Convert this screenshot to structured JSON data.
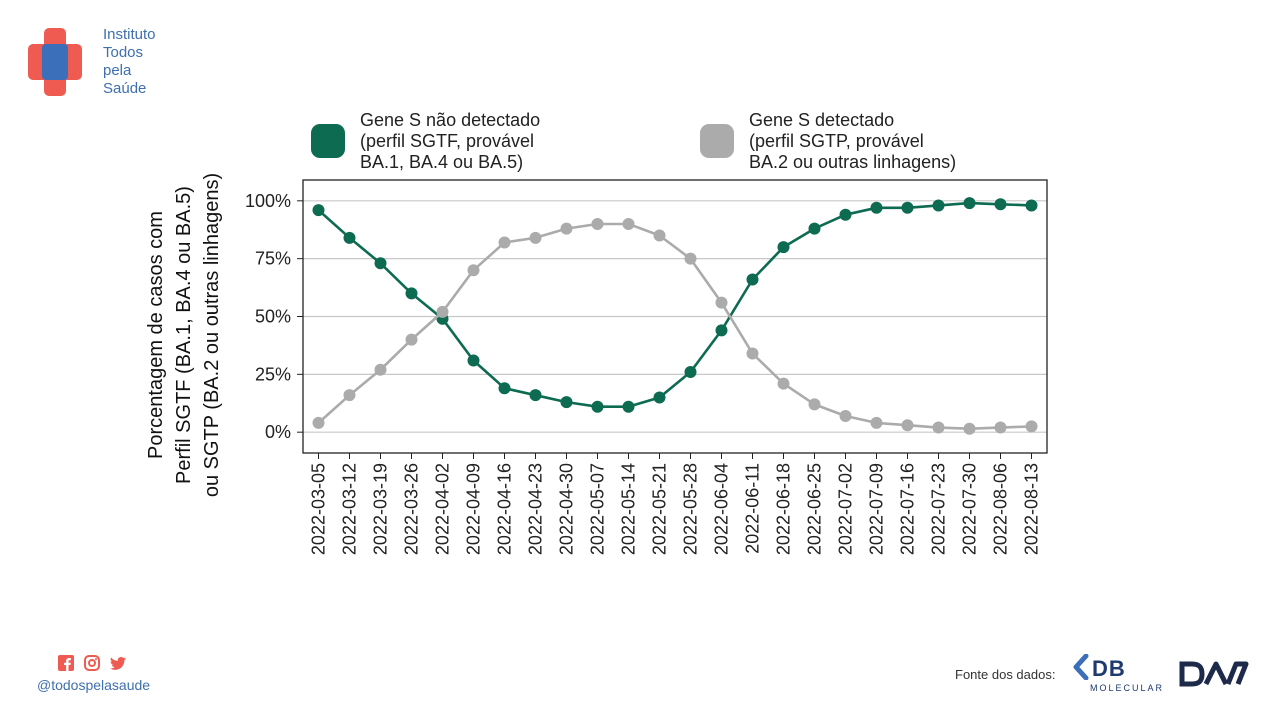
{
  "brand": {
    "lines": [
      "Instituto",
      "Todos",
      "pela",
      "Saúde"
    ],
    "color": "#3e6fb0"
  },
  "footer": {
    "handle": "@todospelasaude",
    "social_icons": [
      "facebook-icon",
      "instagram-icon",
      "twitter-icon"
    ],
    "source_label": "Fonte dos dados:",
    "db_logo": {
      "name": "DB",
      "sub": "MOLECULAR"
    },
    "dasa_logo": {
      "name": "Dasa"
    }
  },
  "chart_data": {
    "type": "line",
    "ylabel_lines": [
      "Porcentagem de casos com",
      "Perfil SGTF (BA.1, BA.4 ou BA.5)",
      "ou SGTP (BA.2 ou outras linhagens)"
    ],
    "ylim": [
      -0.09,
      1.09
    ],
    "yticks": [
      0,
      0.25,
      0.5,
      0.75,
      1.0
    ],
    "ytick_labels": [
      "0%",
      "25%",
      "50%",
      "75%",
      "100%"
    ],
    "grid": "horizontal",
    "legend_position": "top",
    "x": [
      "2022-03-05",
      "2022-03-12",
      "2022-03-19",
      "2022-03-26",
      "2022-04-02",
      "2022-04-09",
      "2022-04-16",
      "2022-04-23",
      "2022-04-30",
      "2022-05-07",
      "2022-05-14",
      "2022-05-21",
      "2022-05-28",
      "2022-06-04",
      "2022-06-11",
      "2022-06-18",
      "2022-06-25",
      "2022-07-02",
      "2022-07-09",
      "2022-07-16",
      "2022-07-23",
      "2022-07-30",
      "2022-08-06",
      "2022-08-13"
    ],
    "series": [
      {
        "name_lines": [
          "Gene S não detectado",
          "(perfil SGTF, provável",
          "BA.1, BA.4 ou BA.5)"
        ],
        "color": "#0d6b52",
        "values": [
          0.96,
          0.84,
          0.73,
          0.6,
          0.49,
          0.31,
          0.19,
          0.16,
          0.13,
          0.11,
          0.11,
          0.15,
          0.26,
          0.44,
          0.66,
          0.8,
          0.88,
          0.94,
          0.97,
          0.97,
          0.98,
          0.99,
          0.985,
          0.98
        ]
      },
      {
        "name_lines": [
          "Gene S detectado",
          "(perfil SGTP, provável",
          "BA.2 ou outras linhagens)"
        ],
        "color": "#ababab",
        "values": [
          0.04,
          0.16,
          0.27,
          0.4,
          0.52,
          0.7,
          0.82,
          0.84,
          0.88,
          0.9,
          0.9,
          0.85,
          0.75,
          0.56,
          0.34,
          0.21,
          0.12,
          0.07,
          0.04,
          0.03,
          0.02,
          0.015,
          0.02,
          0.025
        ]
      }
    ]
  }
}
